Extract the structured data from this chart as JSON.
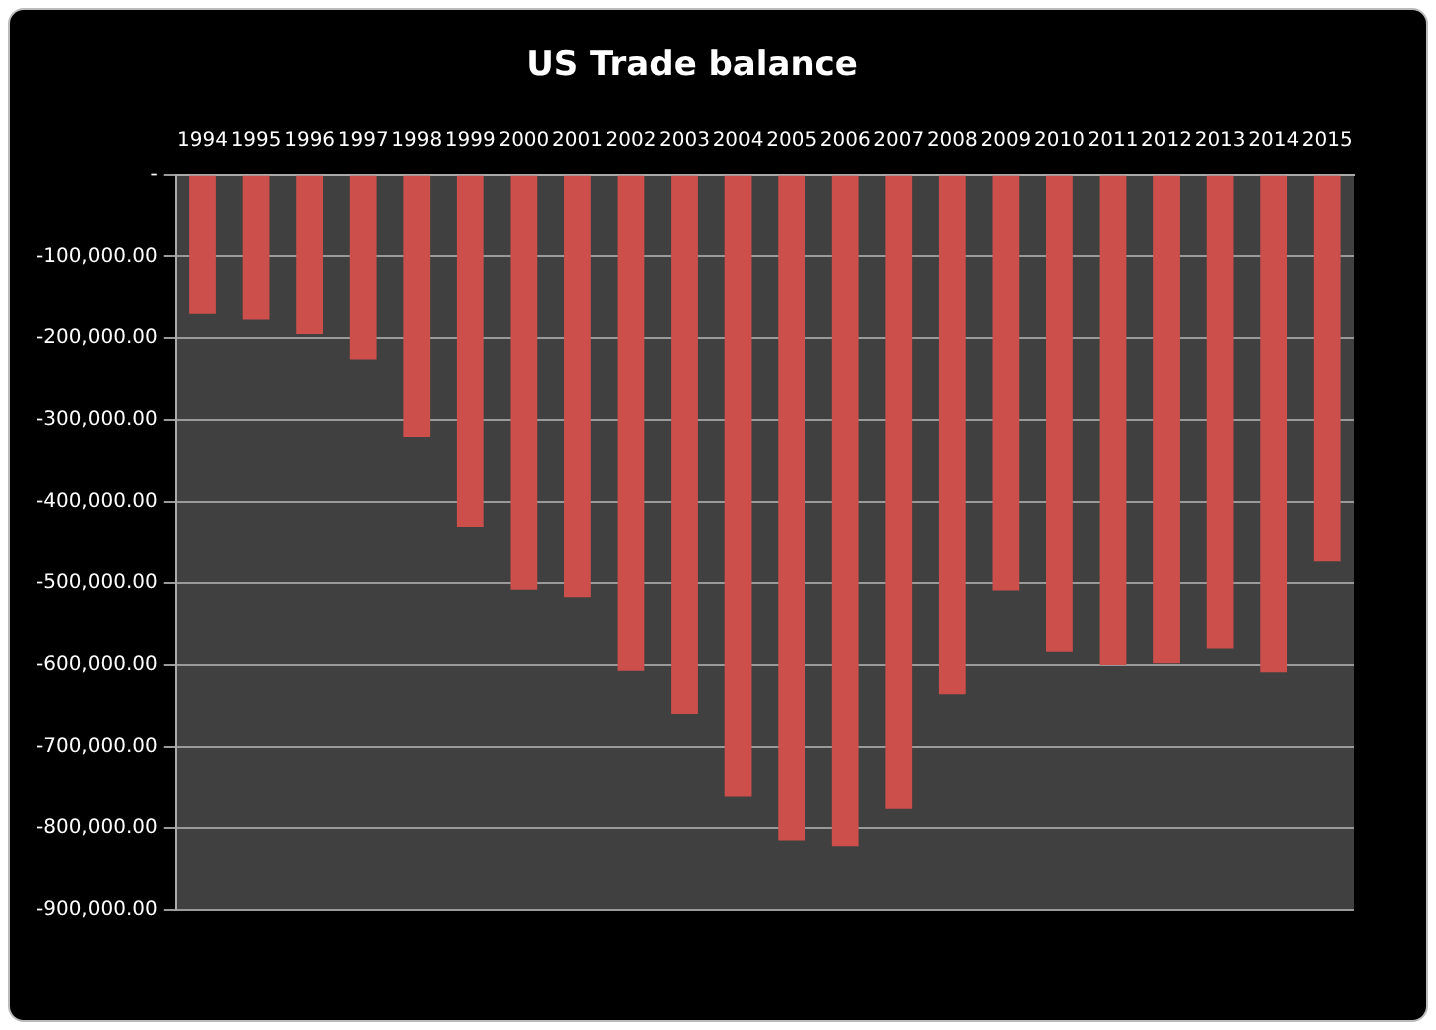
{
  "chart_data": {
    "type": "bar",
    "title": "US Trade balance",
    "categories": [
      "1994",
      "1995",
      "1996",
      "1997",
      "1998",
      "1999",
      "2000",
      "2001",
      "2002",
      "2003",
      "2004",
      "2005",
      "2006",
      "2007",
      "2008",
      "2009",
      "2010",
      "2011",
      "2012",
      "2013",
      "2014",
      "2015"
    ],
    "values": [
      -170000,
      -177000,
      -195000,
      -226000,
      -321000,
      -431000,
      -508000,
      -517000,
      -607000,
      -660000,
      -761000,
      -815000,
      -822000,
      -776000,
      -636000,
      -509000,
      -584000,
      -600000,
      -598000,
      -580000,
      -609000,
      -473000
    ],
    "color": "#cd4f4c",
    "ylim": [
      -900000,
      0
    ],
    "yticks": [
      {
        "value": 0,
        "label": "-"
      },
      {
        "value": -100000,
        "label": "-100,000.00"
      },
      {
        "value": -200000,
        "label": "-200,000.00"
      },
      {
        "value": -300000,
        "label": "-300,000.00"
      },
      {
        "value": -400000,
        "label": "-400,000.00"
      },
      {
        "value": -500000,
        "label": "-500,000.00"
      },
      {
        "value": -600000,
        "label": "-600,000.00"
      },
      {
        "value": -700000,
        "label": "-700,000.00"
      },
      {
        "value": -800000,
        "label": "-800,000.00"
      },
      {
        "value": -900000,
        "label": "-900,000.00"
      }
    ],
    "grid": "y",
    "legend": false
  }
}
